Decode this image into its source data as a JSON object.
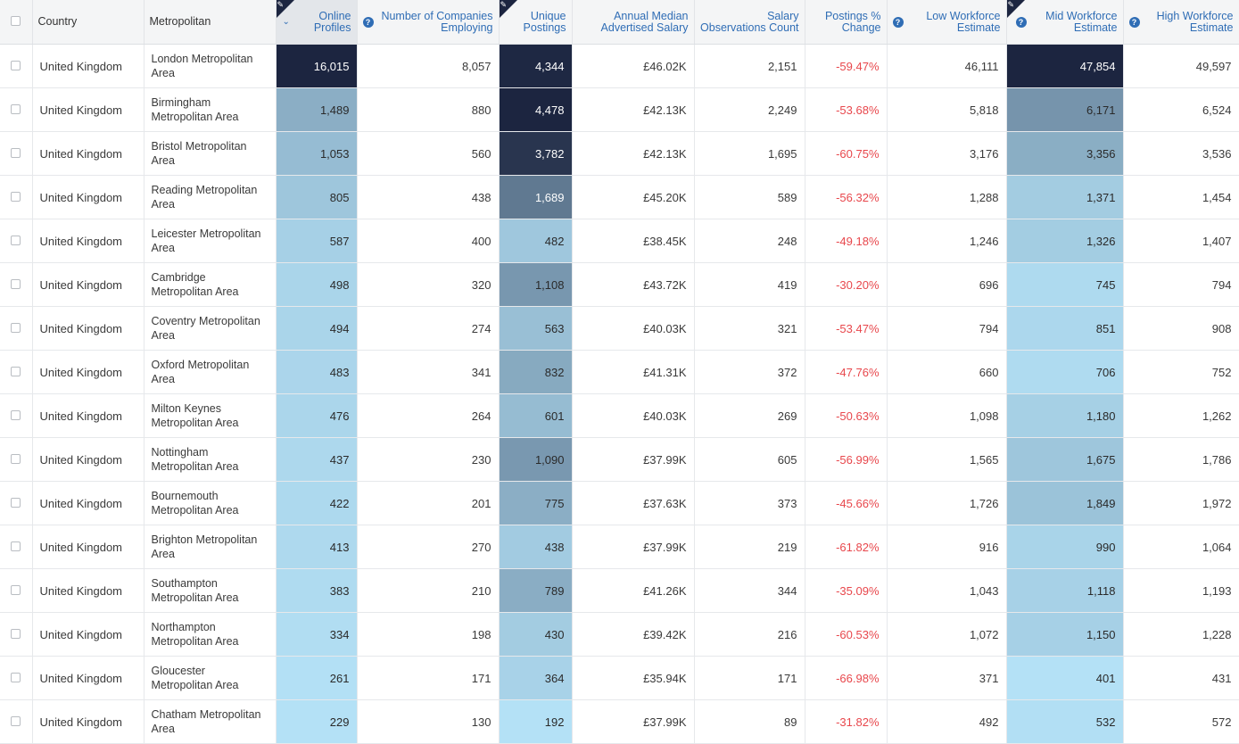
{
  "headers": {
    "country": "Country",
    "metropolitan": "Metropolitan",
    "online_profiles": "Online Profiles",
    "companies": "Number of Companies Employing",
    "unique_postings": "Unique Postings",
    "salary": "Annual Median Advertised Salary",
    "salary_obs": "Salary Observations Count",
    "postings_change": "Postings % Change",
    "low_workforce": "Low Workforce Estimate",
    "mid_workforce": "Mid Workforce Estimate",
    "high_workforce": "High Workforce Estimate"
  },
  "icons": {
    "help": "question-circle-icon",
    "pen": "pen-icon",
    "sort": "chevron-down-icon"
  },
  "colors": {
    "header_link": "#2f6db5",
    "negative": "#e8474c",
    "heat_darkest": "#1c2540",
    "heat_lightest": "#b4e1f6"
  },
  "rows": [
    {
      "country": "United Kingdom",
      "metro": "London Metropolitan Area",
      "profiles": "16,015",
      "companies": "8,057",
      "postings": "4,344",
      "salary": "£46.02K",
      "obs": "2,151",
      "change": "-59.47%",
      "low": "46,111",
      "mid": "47,854",
      "high": "49,597"
    },
    {
      "country": "United Kingdom",
      "metro": "Birmingham Metropolitan Area",
      "profiles": "1,489",
      "companies": "880",
      "postings": "4,478",
      "salary": "£42.13K",
      "obs": "2,249",
      "change": "-53.68%",
      "low": "5,818",
      "mid": "6,171",
      "high": "6,524"
    },
    {
      "country": "United Kingdom",
      "metro": "Bristol Metropolitan Area",
      "profiles": "1,053",
      "companies": "560",
      "postings": "3,782",
      "salary": "£42.13K",
      "obs": "1,695",
      "change": "-60.75%",
      "low": "3,176",
      "mid": "3,356",
      "high": "3,536"
    },
    {
      "country": "United Kingdom",
      "metro": "Reading Metropolitan Area",
      "profiles": "805",
      "companies": "438",
      "postings": "1,689",
      "salary": "£45.20K",
      "obs": "589",
      "change": "-56.32%",
      "low": "1,288",
      "mid": "1,371",
      "high": "1,454"
    },
    {
      "country": "United Kingdom",
      "metro": "Leicester Metropolitan Area",
      "profiles": "587",
      "companies": "400",
      "postings": "482",
      "salary": "£38.45K",
      "obs": "248",
      "change": "-49.18%",
      "low": "1,246",
      "mid": "1,326",
      "high": "1,407"
    },
    {
      "country": "United Kingdom",
      "metro": "Cambridge Metropolitan Area",
      "profiles": "498",
      "companies": "320",
      "postings": "1,108",
      "salary": "£43.72K",
      "obs": "419",
      "change": "-30.20%",
      "low": "696",
      "mid": "745",
      "high": "794"
    },
    {
      "country": "United Kingdom",
      "metro": "Coventry Metropolitan Area",
      "profiles": "494",
      "companies": "274",
      "postings": "563",
      "salary": "£40.03K",
      "obs": "321",
      "change": "-53.47%",
      "low": "794",
      "mid": "851",
      "high": "908"
    },
    {
      "country": "United Kingdom",
      "metro": "Oxford Metropolitan Area",
      "profiles": "483",
      "companies": "341",
      "postings": "832",
      "salary": "£41.31K",
      "obs": "372",
      "change": "-47.76%",
      "low": "660",
      "mid": "706",
      "high": "752"
    },
    {
      "country": "United Kingdom",
      "metro": "Milton Keynes Metropolitan Area",
      "profiles": "476",
      "companies": "264",
      "postings": "601",
      "salary": "£40.03K",
      "obs": "269",
      "change": "-50.63%",
      "low": "1,098",
      "mid": "1,180",
      "high": "1,262"
    },
    {
      "country": "United Kingdom",
      "metro": "Nottingham Metropolitan Area",
      "profiles": "437",
      "companies": "230",
      "postings": "1,090",
      "salary": "£37.99K",
      "obs": "605",
      "change": "-56.99%",
      "low": "1,565",
      "mid": "1,675",
      "high": "1,786"
    },
    {
      "country": "United Kingdom",
      "metro": "Bournemouth Metropolitan Area",
      "profiles": "422",
      "companies": "201",
      "postings": "775",
      "salary": "£37.63K",
      "obs": "373",
      "change": "-45.66%",
      "low": "1,726",
      "mid": "1,849",
      "high": "1,972"
    },
    {
      "country": "United Kingdom",
      "metro": "Brighton Metropolitan Area",
      "profiles": "413",
      "companies": "270",
      "postings": "438",
      "salary": "£37.99K",
      "obs": "219",
      "change": "-61.82%",
      "low": "916",
      "mid": "990",
      "high": "1,064"
    },
    {
      "country": "United Kingdom",
      "metro": "Southampton Metropolitan Area",
      "profiles": "383",
      "companies": "210",
      "postings": "789",
      "salary": "£41.26K",
      "obs": "344",
      "change": "-35.09%",
      "low": "1,043",
      "mid": "1,118",
      "high": "1,193"
    },
    {
      "country": "United Kingdom",
      "metro": "Northampton Metropolitan Area",
      "profiles": "334",
      "companies": "198",
      "postings": "430",
      "salary": "£39.42K",
      "obs": "216",
      "change": "-60.53%",
      "low": "1,072",
      "mid": "1,150",
      "high": "1,228"
    },
    {
      "country": "United Kingdom",
      "metro": "Gloucester Metropolitan Area",
      "profiles": "261",
      "companies": "171",
      "postings": "364",
      "salary": "£35.94K",
      "obs": "171",
      "change": "-66.98%",
      "low": "371",
      "mid": "401",
      "high": "431"
    },
    {
      "country": "United Kingdom",
      "metro": "Chatham Metropolitan Area",
      "profiles": "229",
      "companies": "130",
      "postings": "192",
      "salary": "£37.99K",
      "obs": "89",
      "change": "-31.82%",
      "low": "492",
      "mid": "532",
      "high": "572"
    }
  ]
}
